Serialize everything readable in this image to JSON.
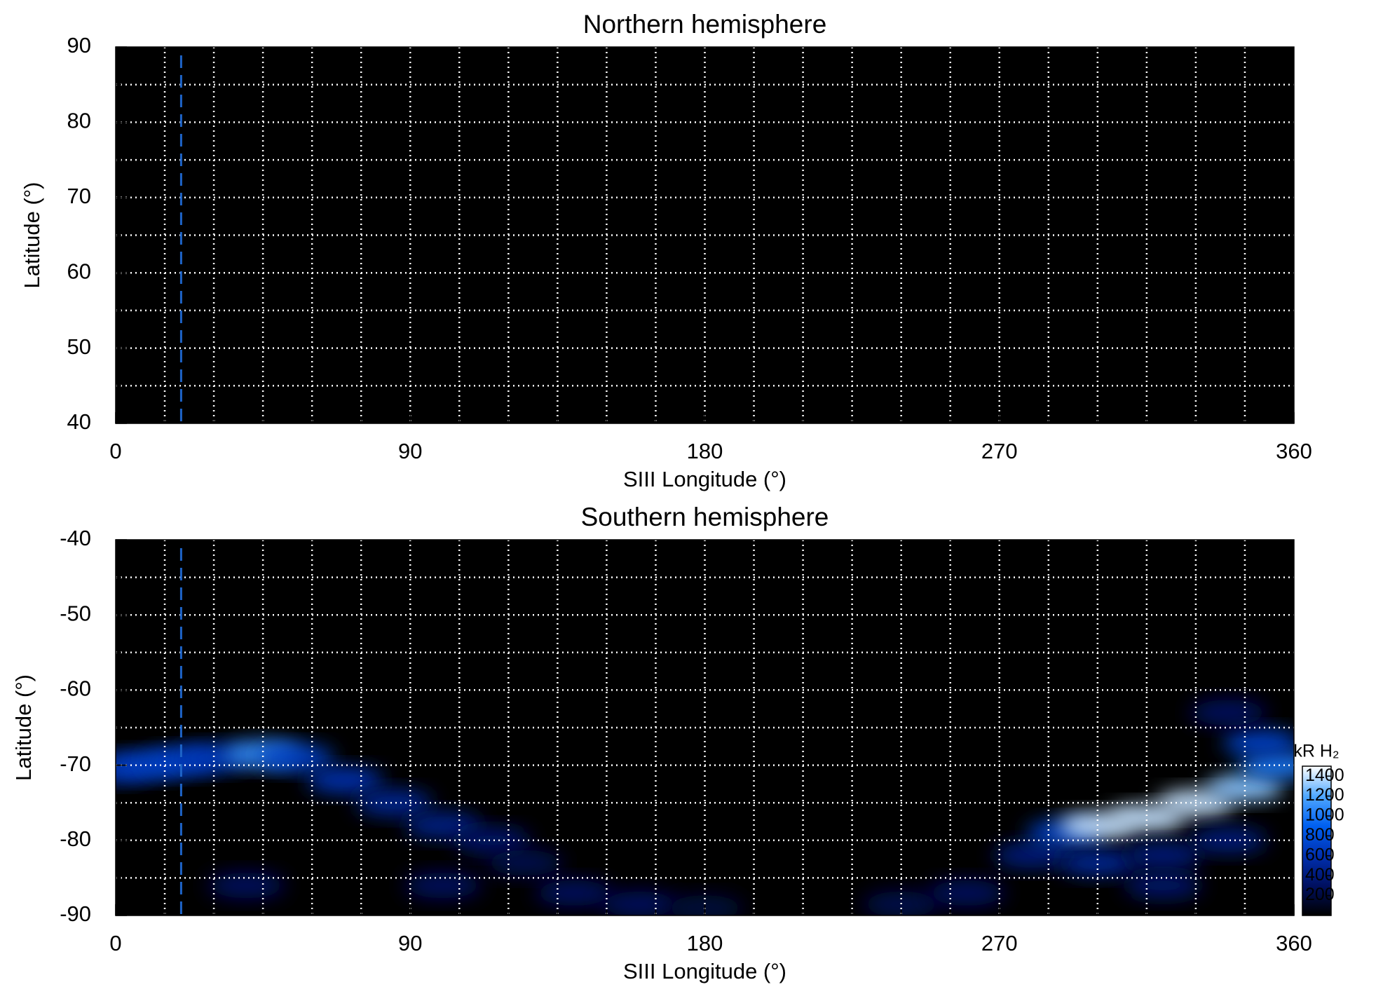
{
  "chart_data": [
    {
      "type": "heatmap",
      "title": "Northern hemisphere",
      "xlabel": "SIII Longitude (°)",
      "ylabel": "Latitude (°)",
      "xlim": [
        0,
        360
      ],
      "ylim": [
        40,
        90
      ],
      "xticks": [
        0,
        90,
        180,
        270,
        360
      ],
      "yticks": [
        40,
        50,
        60,
        70,
        80,
        90
      ],
      "xgrid": [
        15,
        30,
        45,
        60,
        75,
        90,
        105,
        120,
        135,
        150,
        165,
        180,
        195,
        210,
        225,
        240,
        255,
        270,
        285,
        300,
        315,
        330,
        345
      ],
      "ygrid": [
        45,
        50,
        55,
        60,
        65,
        70,
        75,
        80,
        85
      ],
      "reference_longitude": 20,
      "reference_color": "#1e64c8",
      "background": "#000000",
      "x": [],
      "y": [],
      "values": []
    },
    {
      "type": "heatmap",
      "title": "Southern hemisphere",
      "xlabel": "SIII Longitude (°)",
      "ylabel": "Latitude (°)",
      "xlim": [
        0,
        360
      ],
      "ylim": [
        -90,
        -40
      ],
      "xticks": [
        0,
        90,
        180,
        270,
        360
      ],
      "yticks": [
        -90,
        -80,
        -70,
        -60,
        -50,
        -40
      ],
      "xgrid": [
        15,
        30,
        45,
        60,
        75,
        90,
        105,
        120,
        135,
        150,
        165,
        180,
        195,
        210,
        225,
        240,
        255,
        270,
        285,
        300,
        315,
        330,
        345
      ],
      "ygrid": [
        -85,
        -80,
        -75,
        -70,
        -65,
        -60,
        -55,
        -50,
        -45
      ],
      "reference_longitude": 20,
      "reference_color": "#1e64c8",
      "background": "#000000",
      "x": [
        0,
        10,
        20,
        30,
        45,
        55,
        70,
        85,
        100,
        115,
        125,
        140,
        160,
        180,
        240,
        260,
        280,
        290,
        300,
        315,
        330,
        345,
        355,
        350,
        340,
        300,
        320,
        340,
        40,
        100,
        320
      ],
      "y": [
        -70.5,
        -70,
        -69.5,
        -69,
        -68.5,
        -69,
        -72,
        -75,
        -78,
        -80,
        -83,
        -87,
        -88.5,
        -89,
        -88.5,
        -87,
        -82,
        -79,
        -78,
        -77,
        -75,
        -73,
        -70,
        -67,
        -63,
        -83,
        -82,
        -80,
        -86,
        -86,
        -86
      ],
      "values": [
        600,
        700,
        700,
        650,
        1100,
        700,
        600,
        500,
        450,
        350,
        250,
        300,
        300,
        200,
        250,
        300,
        400,
        700,
        1400,
        1400,
        1400,
        1300,
        1000,
        700,
        300,
        500,
        400,
        400,
        300,
        300,
        350
      ],
      "colorbar": {
        "label": "kR H₂",
        "lim": [
          0,
          1500
        ],
        "ticks": [
          200,
          400,
          600,
          800,
          1000,
          1200,
          1400
        ],
        "colors": [
          "#000000",
          "#001060",
          "#0030b0",
          "#0060f0",
          "#50a8ff",
          "#ffffff"
        ]
      }
    }
  ]
}
